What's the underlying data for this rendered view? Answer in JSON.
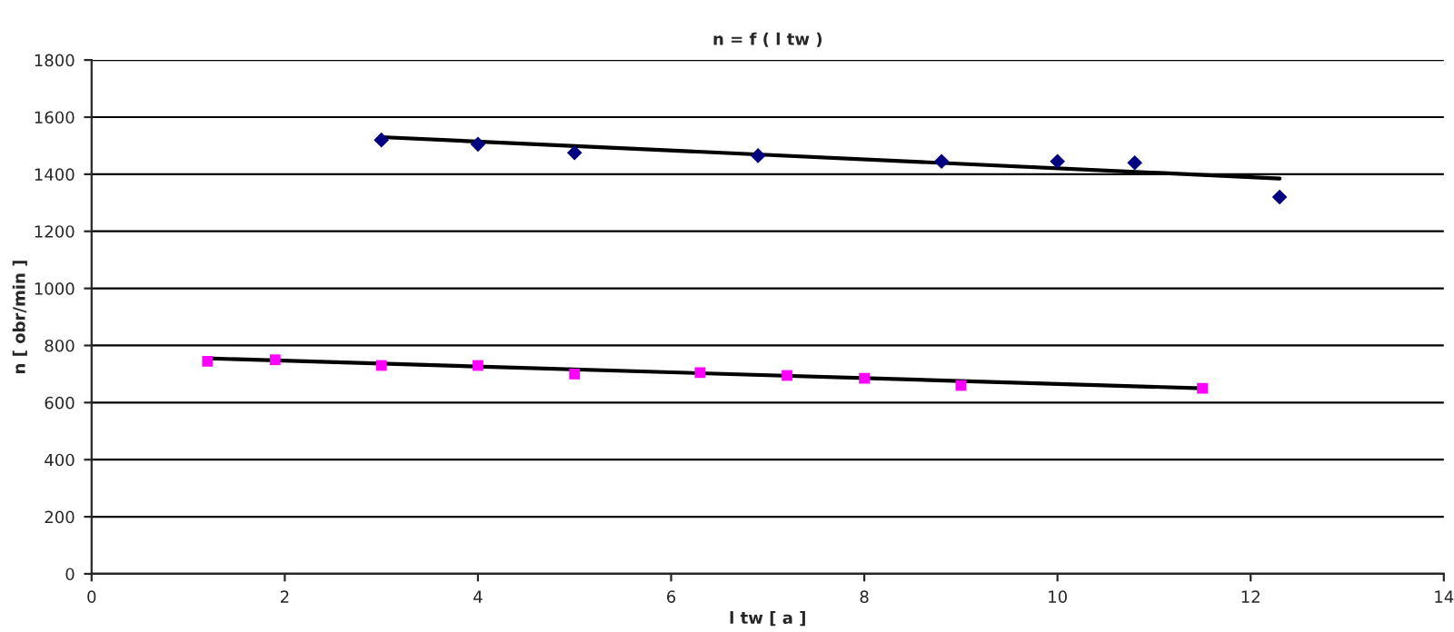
{
  "chart_data": {
    "type": "scatter",
    "title": "n = f ( l tw )",
    "xlabel": "l tw [ a ]",
    "ylabel": "n [ obr/min ]",
    "xlim": [
      0,
      14
    ],
    "xticks": [
      0,
      2,
      4,
      6,
      8,
      10,
      12,
      14
    ],
    "ylim": [
      0,
      1800
    ],
    "yticks": [
      0,
      200,
      400,
      600,
      800,
      1000,
      1200,
      1400,
      1600,
      1800
    ],
    "grid": "y",
    "legend": false,
    "series": [
      {
        "color": "#000080",
        "marker": "diamond",
        "x": [
          3,
          4,
          5,
          6.9,
          8.8,
          10,
          10.8,
          12.3
        ],
        "values": [
          1520,
          1505,
          1475,
          1465,
          1445,
          1445,
          1440,
          1320
        ]
      },
      {
        "color": "#ff00ff",
        "marker": "square",
        "x": [
          1.2,
          1.9,
          3,
          4,
          5,
          6.3,
          7.2,
          8,
          9,
          11.5
        ],
        "values": [
          745,
          750,
          730,
          730,
          700,
          705,
          695,
          685,
          660,
          650
        ]
      },
      {
        "type": "line",
        "color": "#000000",
        "marker": "none",
        "x": [
          3,
          12.3
        ],
        "values": [
          1530,
          1385
        ]
      },
      {
        "type": "line",
        "color": "#000000",
        "marker": "none",
        "x": [
          1.2,
          11.5
        ],
        "values": [
          755,
          650
        ]
      }
    ]
  }
}
